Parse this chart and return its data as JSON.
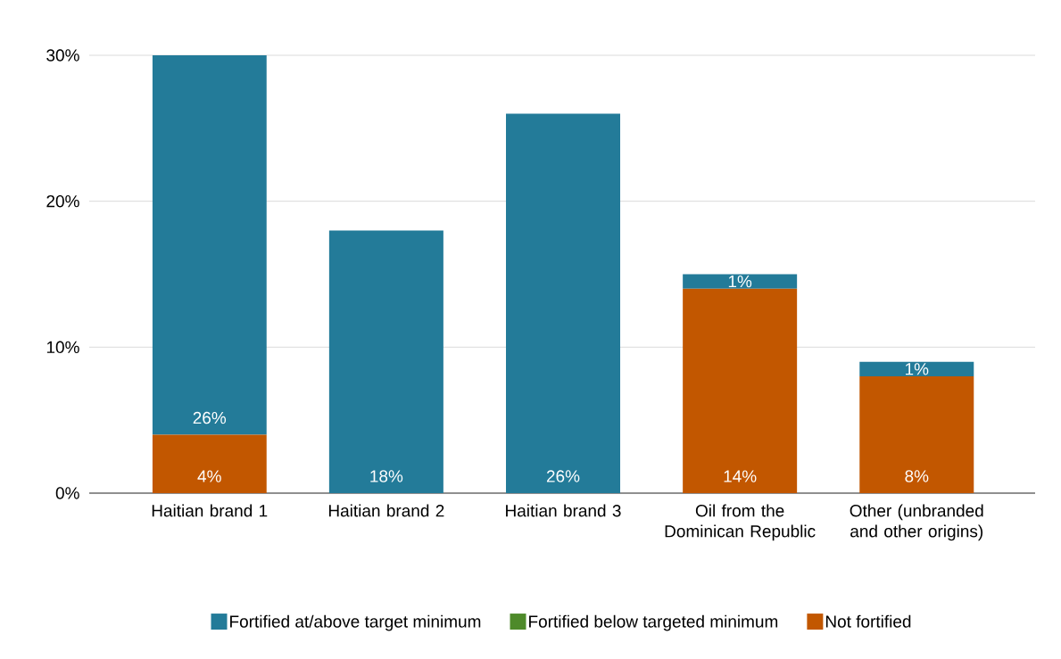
{
  "chart_data": {
    "type": "bar",
    "stacked": true,
    "categories": [
      "Haitian brand 1",
      "Haitian brand 2",
      "Haitian brand 3",
      "Oil from the Dominican Republic",
      "Other (unbranded and other origins)"
    ],
    "series": [
      {
        "name": "Not fortified",
        "color": "#c25700",
        "values": [
          4,
          0,
          0,
          14,
          8
        ],
        "value_labels": [
          "4%",
          null,
          null,
          "14%",
          "8%"
        ]
      },
      {
        "name": "Fortified below targeted minimum",
        "color": "#4e8a2a",
        "values": [
          0,
          0,
          0,
          0,
          0
        ]
      },
      {
        "name": "Fortified at/above target minimum",
        "color": "#237b99",
        "values": [
          26,
          18,
          26,
          1,
          1
        ],
        "value_labels": [
          "26%",
          "18%",
          "26%",
          "1%",
          "1%"
        ]
      }
    ],
    "ylim": [
      0,
      30
    ],
    "yticks": [
      {
        "value": 0,
        "label": "0%"
      },
      {
        "value": 10,
        "label": "10%"
      },
      {
        "value": 20,
        "label": "20%"
      },
      {
        "value": 30,
        "label": "30%"
      }
    ],
    "grid": "y",
    "legend": "bottom"
  }
}
